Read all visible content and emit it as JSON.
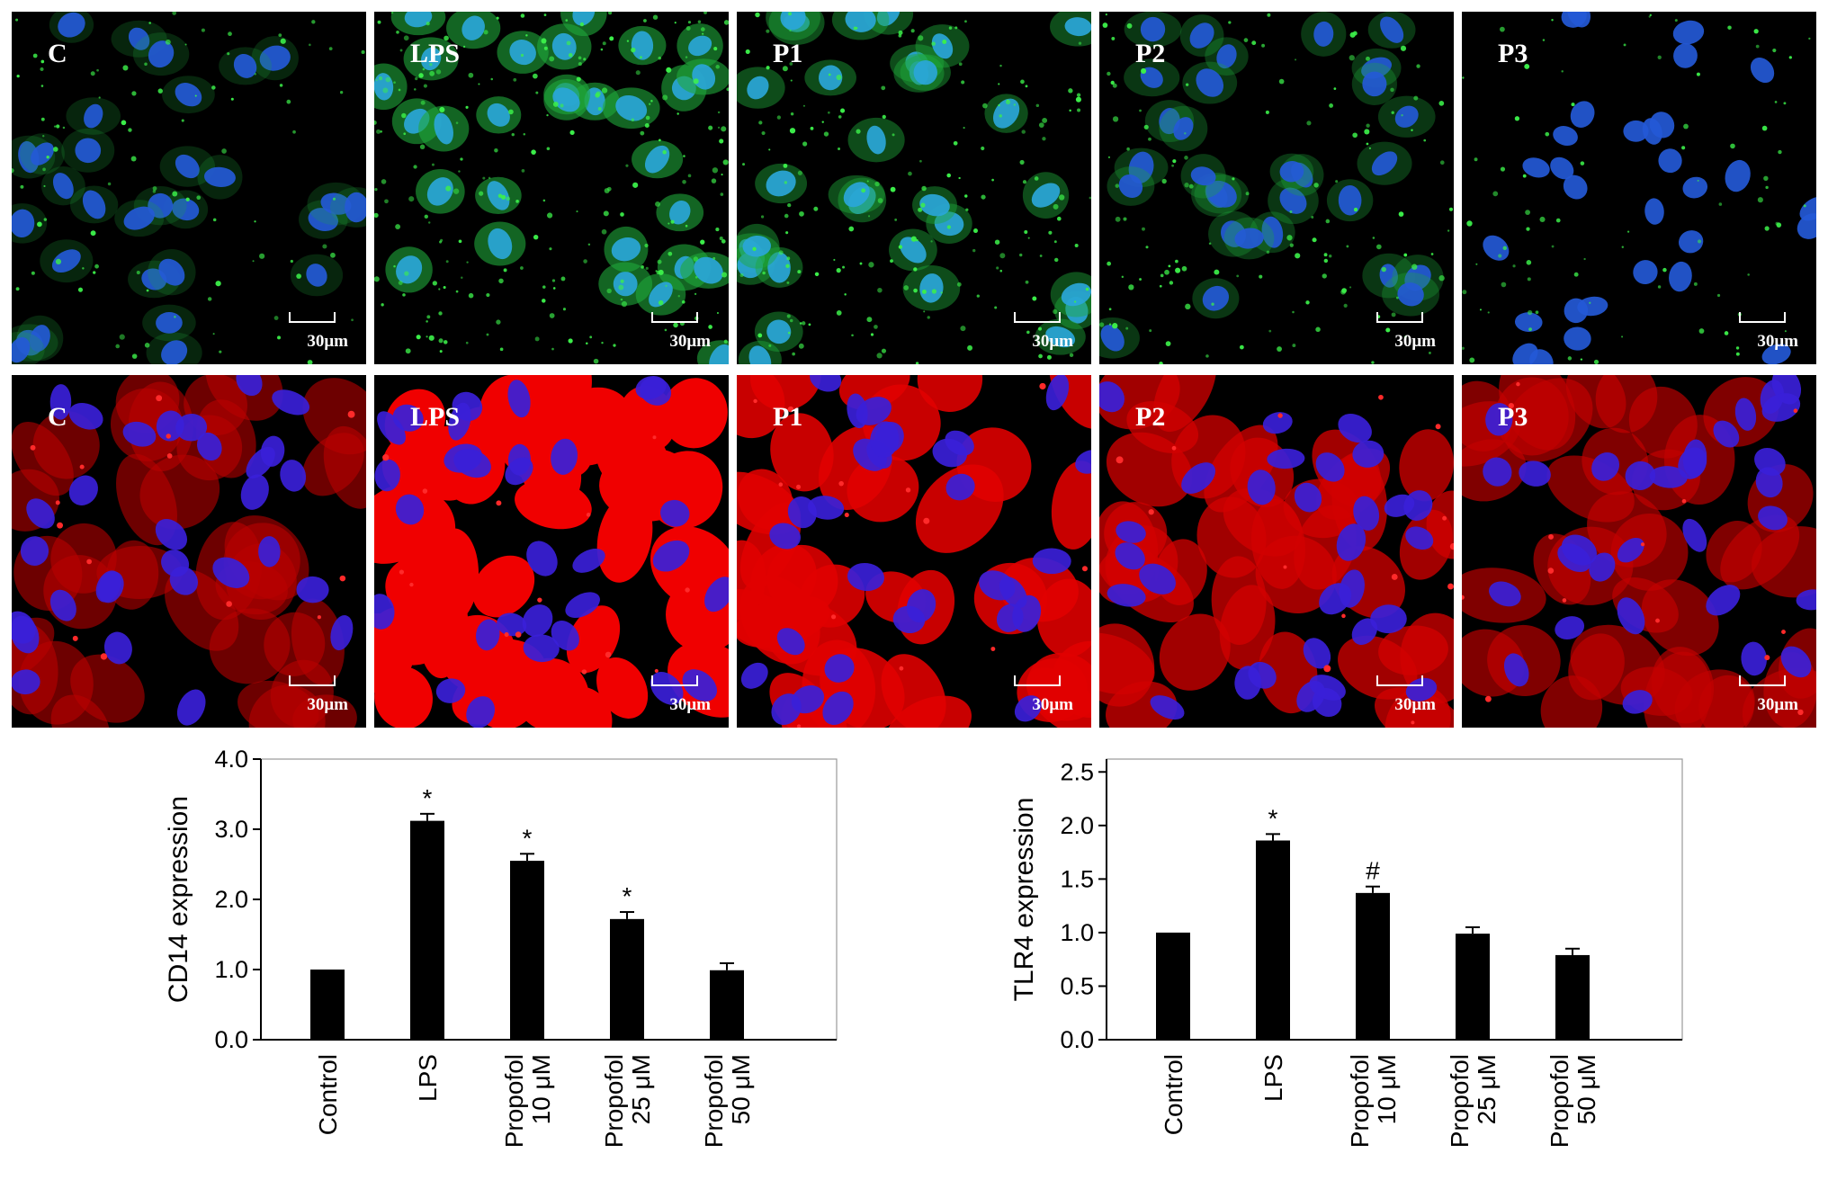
{
  "micrographs": {
    "scale_label": "30μm",
    "rows": [
      {
        "stain": "green",
        "labels": [
          "C",
          "LPS",
          "P1",
          "P2",
          "P3"
        ],
        "intensity": [
          0.15,
          0.9,
          0.6,
          0.35,
          0.12
        ]
      },
      {
        "stain": "red",
        "labels": [
          "C",
          "LPS",
          "P1",
          "P2",
          "P3"
        ],
        "intensity": [
          0.45,
          1.0,
          0.85,
          0.7,
          0.55
        ]
      }
    ]
  },
  "chart_data": [
    {
      "type": "bar",
      "categories": [
        "Control",
        "LPS",
        "Propofol\n10 μM",
        "Propofol\n25 μM",
        "Propofol\n50 μM"
      ],
      "values": [
        1.0,
        3.12,
        2.55,
        1.72,
        0.99
      ],
      "errors": [
        0.0,
        0.1,
        0.1,
        0.1,
        0.1
      ],
      "annotations": [
        "",
        "*",
        "*",
        "*",
        ""
      ],
      "ylabel": "CD14 expression",
      "ylim": [
        0,
        4
      ],
      "yticks": [
        "0.0",
        "1.0",
        "2.0",
        "3.0",
        "4.0"
      ],
      "title": "",
      "xlabel": ""
    },
    {
      "type": "bar",
      "categories": [
        "Control",
        "LPS",
        "Propofol\n10 μM",
        "Propofol\n25 μM",
        "Propofol\n50 μM"
      ],
      "values": [
        1.0,
        1.86,
        1.37,
        0.99,
        0.79
      ],
      "errors": [
        0.0,
        0.06,
        0.06,
        0.06,
        0.06
      ],
      "annotations": [
        "",
        "*",
        "#",
        "",
        ""
      ],
      "ylabel": "TLR4 expression",
      "ylim": [
        0,
        2.62
      ],
      "yticks": [
        "0.0",
        "0.5",
        "1.0",
        "1.5",
        "2.0",
        "2.5"
      ],
      "title": "",
      "xlabel": ""
    }
  ]
}
